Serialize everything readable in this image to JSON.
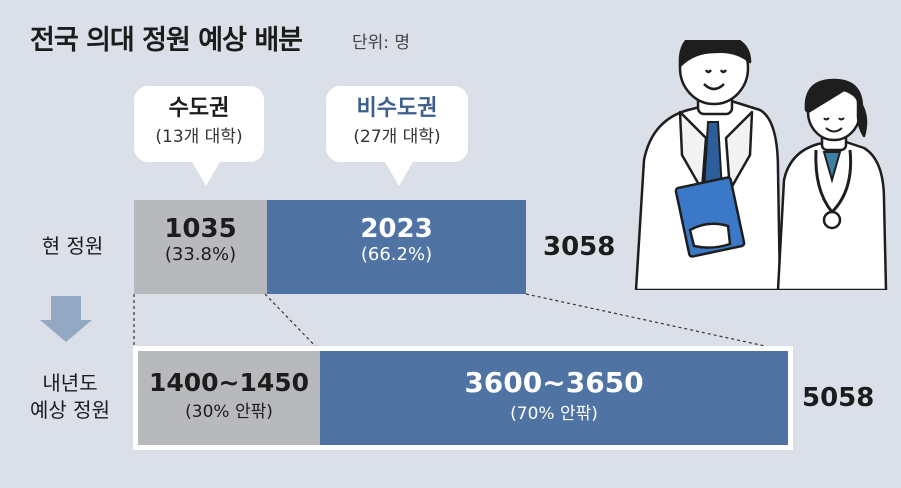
{
  "title": "전국 의대 정원 예상 배분",
  "unit": "단위: 명",
  "colors": {
    "capital": "#b7b9bd",
    "noncapital": "#4f73a2",
    "background": "#dbe0e8"
  },
  "bubbles": [
    {
      "name": "수도권",
      "sub": "(13개 대학)",
      "color": "#1c1c1c"
    },
    {
      "name": "비수도권",
      "sub": "(27개 대학)",
      "color": "#3d5f8e"
    }
  ],
  "rows": {
    "current": {
      "label": "현 정원",
      "total": "3058"
    },
    "next": {
      "label_line1": "내년도",
      "label_line2": "예상 정원",
      "total": "5058"
    }
  },
  "chart_data": {
    "type": "bar",
    "orientation": "horizontal-stacked",
    "categories": [
      "현 정원",
      "내년도 예상 정원"
    ],
    "series": [
      {
        "name": "수도권",
        "values": [
          1035,
          1425
        ],
        "labels": [
          "1035",
          "1400~1450"
        ],
        "shares": [
          "(33.8%)",
          "(30% 안팎)"
        ]
      },
      {
        "name": "비수도권",
        "values": [
          2023,
          3625
        ],
        "labels": [
          "2023",
          "3600~3650"
        ],
        "shares": [
          "(66.2%)",
          "(70% 안팎)"
        ]
      }
    ],
    "totals": [
      3058,
      5058
    ]
  },
  "illustration": {
    "icon": "doctors-illustration"
  }
}
